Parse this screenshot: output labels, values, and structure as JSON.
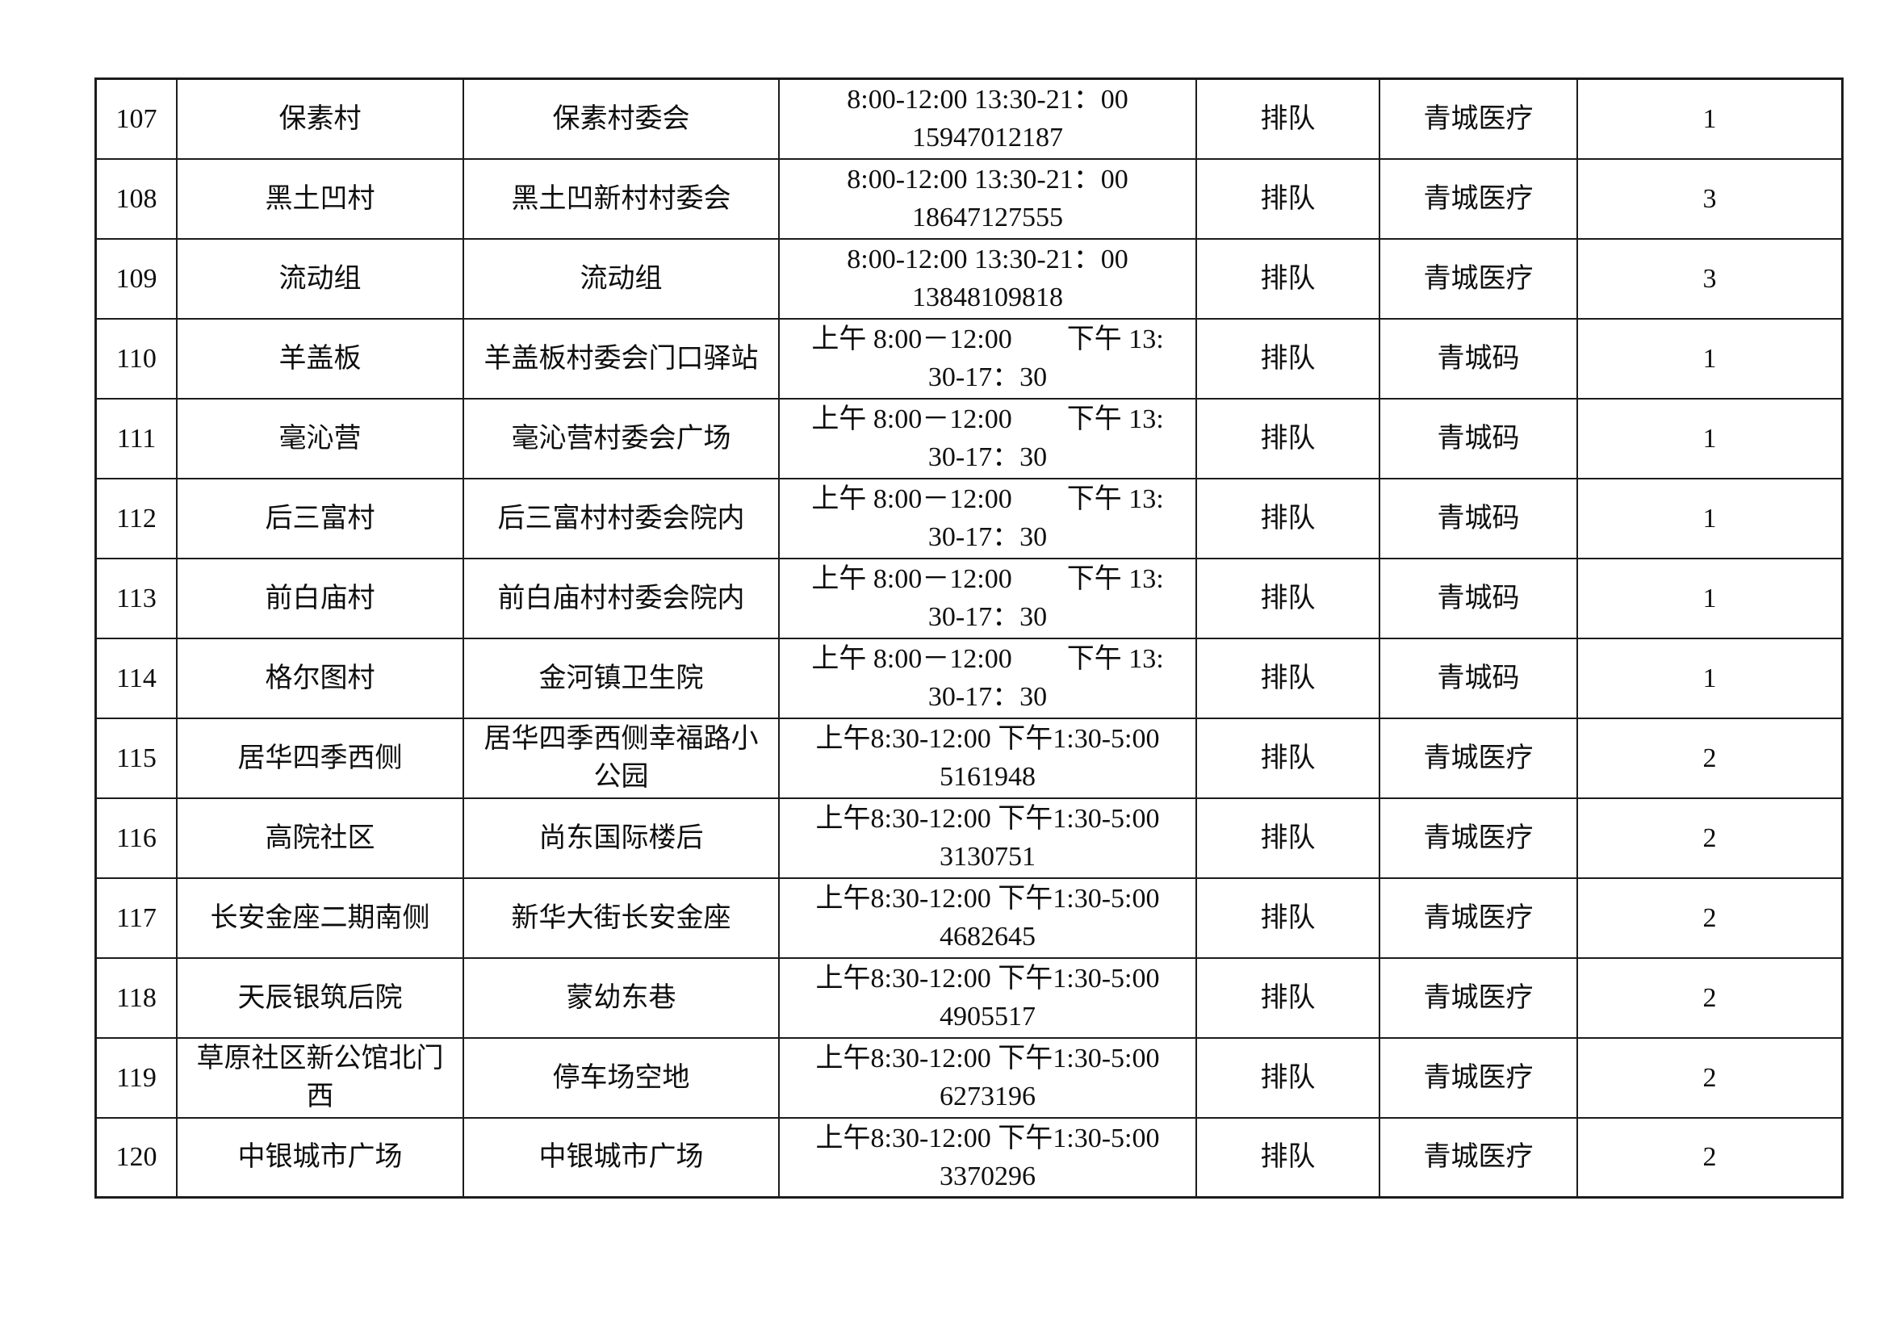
{
  "table": {
    "rows": [
      {
        "num": "107",
        "name": "保素村",
        "address": "保素村委会",
        "schedule": "8:00-12:00 13:30-21：00\n15947012187",
        "queue": "排队",
        "platform": "青城医疗",
        "count": "1"
      },
      {
        "num": "108",
        "name": "黑土凹村",
        "address": "黑土凹新村村委会",
        "schedule": "8:00-12:00 13:30-21：00\n18647127555",
        "queue": "排队",
        "platform": "青城医疗",
        "count": "3"
      },
      {
        "num": "109",
        "name": "流动组",
        "address": "流动组",
        "schedule": "8:00-12:00 13:30-21：00\n13848109818",
        "queue": "排队",
        "platform": "青城医疗",
        "count": "3"
      },
      {
        "num": "110",
        "name": "羊盖板",
        "address": "羊盖板村委会门口驿站",
        "schedule": "上午 8:00－12:00　　下午 13:\n30-17：30",
        "queue": "排队",
        "platform": "青城码",
        "count": "1"
      },
      {
        "num": "111",
        "name": "毫沁营",
        "address": "毫沁营村委会广场",
        "schedule": "上午 8:00－12:00　　下午 13:\n30-17：30",
        "queue": "排队",
        "platform": "青城码",
        "count": "1"
      },
      {
        "num": "112",
        "name": "后三富村",
        "address": "后三富村村委会院内",
        "schedule": "上午 8:00－12:00　　下午 13:\n30-17：30",
        "queue": "排队",
        "platform": "青城码",
        "count": "1"
      },
      {
        "num": "113",
        "name": "前白庙村",
        "address": "前白庙村村委会院内",
        "schedule": "上午 8:00－12:00　　下午 13:\n30-17：30",
        "queue": "排队",
        "platform": "青城码",
        "count": "1"
      },
      {
        "num": "114",
        "name": "格尔图村",
        "address": "金河镇卫生院",
        "schedule": "上午 8:00－12:00　　下午 13:\n30-17：30",
        "queue": "排队",
        "platform": "青城码",
        "count": "1"
      },
      {
        "num": "115",
        "name": "居华四季西侧",
        "address": "居华四季西侧幸福路小\n公园",
        "schedule": "上午8:30-12:00 下午1:30-5:00\n5161948",
        "queue": "排队",
        "platform": "青城医疗",
        "count": "2"
      },
      {
        "num": "116",
        "name": "高院社区",
        "address": "尚东国际楼后",
        "schedule": "上午8:30-12:00 下午1:30-5:00\n3130751",
        "queue": "排队",
        "platform": "青城医疗",
        "count": "2"
      },
      {
        "num": "117",
        "name": "长安金座二期南侧",
        "address": "新华大街长安金座",
        "schedule": "上午8:30-12:00 下午1:30-5:00\n4682645",
        "queue": "排队",
        "platform": "青城医疗",
        "count": "2"
      },
      {
        "num": "118",
        "name": "天辰银筑后院",
        "address": "蒙幼东巷",
        "schedule": "上午8:30-12:00 下午1:30-5:00\n4905517",
        "queue": "排队",
        "platform": "青城医疗",
        "count": "2"
      },
      {
        "num": "119",
        "name": "草原社区新公馆北门\n西",
        "address": "停车场空地",
        "schedule": "上午8:30-12:00 下午1:30-5:00\n6273196",
        "queue": "排队",
        "platform": "青城医疗",
        "count": "2"
      },
      {
        "num": "120",
        "name": "中银城市广场",
        "address": "中银城市广场",
        "schedule": "上午8:30-12:00 下午1:30-5:00\n3370296",
        "queue": "排队",
        "platform": "青城医疗",
        "count": "2"
      }
    ]
  }
}
